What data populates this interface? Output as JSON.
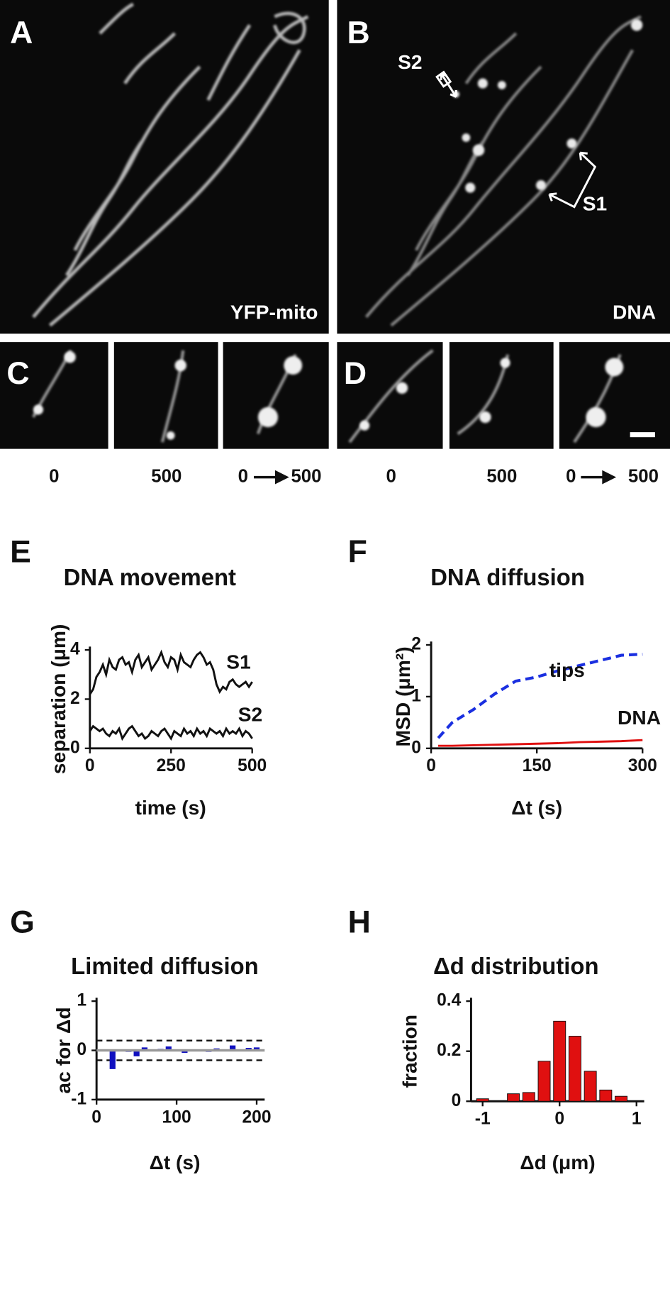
{
  "panels": {
    "A": {
      "letter": "A",
      "caption": "YFP-mito"
    },
    "B": {
      "letter": "B",
      "caption": "DNA",
      "markers": [
        "S2",
        "S1"
      ]
    },
    "C": {
      "letter": "C",
      "time_labels": [
        "0",
        "500",
        "0",
        "500"
      ]
    },
    "D": {
      "letter": "D",
      "time_labels": [
        "0",
        "500",
        "0",
        "500"
      ]
    }
  },
  "chart_data": [
    {
      "type": "line",
      "panel": "E",
      "title": "DNA movement",
      "xlabel": "time (s)",
      "ylabel": "separation (μm)",
      "x": [
        0,
        10,
        20,
        30,
        40,
        50,
        60,
        70,
        80,
        90,
        100,
        110,
        120,
        130,
        140,
        150,
        160,
        170,
        180,
        190,
        200,
        210,
        220,
        230,
        240,
        250,
        260,
        270,
        280,
        290,
        300,
        310,
        320,
        330,
        340,
        350,
        360,
        370,
        380,
        390,
        400,
        410,
        420,
        430,
        440,
        450,
        460,
        470,
        480,
        490,
        500
      ],
      "series": [
        {
          "name": "S1",
          "color": "#111111",
          "values": [
            2.2,
            2.4,
            2.9,
            3.1,
            3.4,
            3.0,
            3.6,
            3.3,
            3.2,
            3.6,
            3.7,
            3.4,
            3.5,
            3.1,
            3.6,
            3.8,
            3.3,
            3.5,
            3.7,
            3.2,
            3.4,
            3.6,
            3.9,
            3.5,
            3.3,
            3.7,
            3.6,
            3.2,
            3.8,
            3.5,
            3.4,
            3.3,
            3.6,
            3.8,
            3.9,
            3.7,
            3.4,
            3.5,
            3.2,
            2.6,
            2.3,
            2.5,
            2.4,
            2.7,
            2.8,
            2.6,
            2.5,
            2.6,
            2.7,
            2.5,
            2.7
          ]
        },
        {
          "name": "S2",
          "color": "#111111",
          "values": [
            0.7,
            0.9,
            0.8,
            0.7,
            0.8,
            0.6,
            0.5,
            0.7,
            0.6,
            0.8,
            0.4,
            0.6,
            0.8,
            0.9,
            0.7,
            0.5,
            0.6,
            0.4,
            0.5,
            0.7,
            0.6,
            0.5,
            0.7,
            0.8,
            0.6,
            0.4,
            0.7,
            0.6,
            0.5,
            0.8,
            0.6,
            0.7,
            0.5,
            0.8,
            0.6,
            0.7,
            0.5,
            0.8,
            0.7,
            0.6,
            0.7,
            0.5,
            0.8,
            0.6,
            0.7,
            0.6,
            0.8,
            0.5,
            0.7,
            0.6,
            0.4
          ]
        }
      ],
      "xlim": [
        0,
        500
      ],
      "xticks": [
        0,
        250,
        500
      ],
      "ylim": [
        0,
        4
      ],
      "yticks": [
        0,
        2,
        4
      ]
    },
    {
      "type": "line",
      "panel": "F",
      "title": "DNA diffusion",
      "xlabel": "Δt (s)",
      "ylabel": "MSD (μm²)",
      "x": [
        10,
        30,
        60,
        90,
        120,
        150,
        180,
        210,
        240,
        270,
        300
      ],
      "series": [
        {
          "name": "tips",
          "color": "#1a2fe0",
          "linestyle": "dashed",
          "values": [
            0.2,
            0.5,
            0.75,
            1.05,
            1.3,
            1.38,
            1.5,
            1.6,
            1.7,
            1.8,
            1.82
          ]
        },
        {
          "name": "DNA",
          "color": "#e01010",
          "linestyle": "solid",
          "values": [
            0.05,
            0.05,
            0.06,
            0.07,
            0.08,
            0.09,
            0.1,
            0.12,
            0.13,
            0.14,
            0.16
          ]
        }
      ],
      "xlim": [
        0,
        300
      ],
      "xticks": [
        0,
        150,
        300
      ],
      "ylim": [
        0,
        2
      ],
      "yticks": [
        0,
        1,
        2
      ]
    },
    {
      "type": "bar",
      "panel": "G",
      "title": "Limited diffusion",
      "xlabel": "Δt (s)",
      "ylabel": "ac for Δd",
      "x": [
        10,
        20,
        30,
        40,
        50,
        60,
        70,
        80,
        90,
        100,
        110,
        120,
        130,
        140,
        150,
        160,
        170,
        180,
        190,
        200
      ],
      "values": [
        0.01,
        -0.38,
        0.02,
        -0.03,
        -0.12,
        0.06,
        -0.02,
        0.03,
        0.08,
        -0.02,
        -0.05,
        0.02,
        0.01,
        -0.03,
        0.04,
        0.02,
        0.1,
        -0.02,
        0.05,
        0.06
      ],
      "color": "#1010c0",
      "reference_lines": [
        0.2,
        -0.2
      ],
      "xlim": [
        0,
        210
      ],
      "xticks": [
        0,
        100,
        200
      ],
      "ylim": [
        -1,
        1
      ],
      "yticks": [
        -1,
        0,
        1
      ]
    },
    {
      "type": "histogram",
      "panel": "H",
      "title": "Δd distribution",
      "xlabel": "Δd (μm)",
      "ylabel": "fraction",
      "bins": [
        -1.1,
        -0.9,
        -0.7,
        -0.5,
        -0.3,
        -0.1,
        0.1,
        0.3,
        0.5,
        0.7,
        0.9
      ],
      "values": [
        0.01,
        0,
        0.03,
        0.035,
        0.16,
        0.32,
        0.26,
        0.12,
        0.045,
        0.02
      ],
      "color": "#e01010",
      "xlim": [
        -1.15,
        1.1
      ],
      "xticks": [
        -1,
        0,
        1
      ],
      "ylim": [
        0,
        0.4
      ],
      "yticks": [
        0,
        0.2,
        0.4
      ]
    }
  ]
}
